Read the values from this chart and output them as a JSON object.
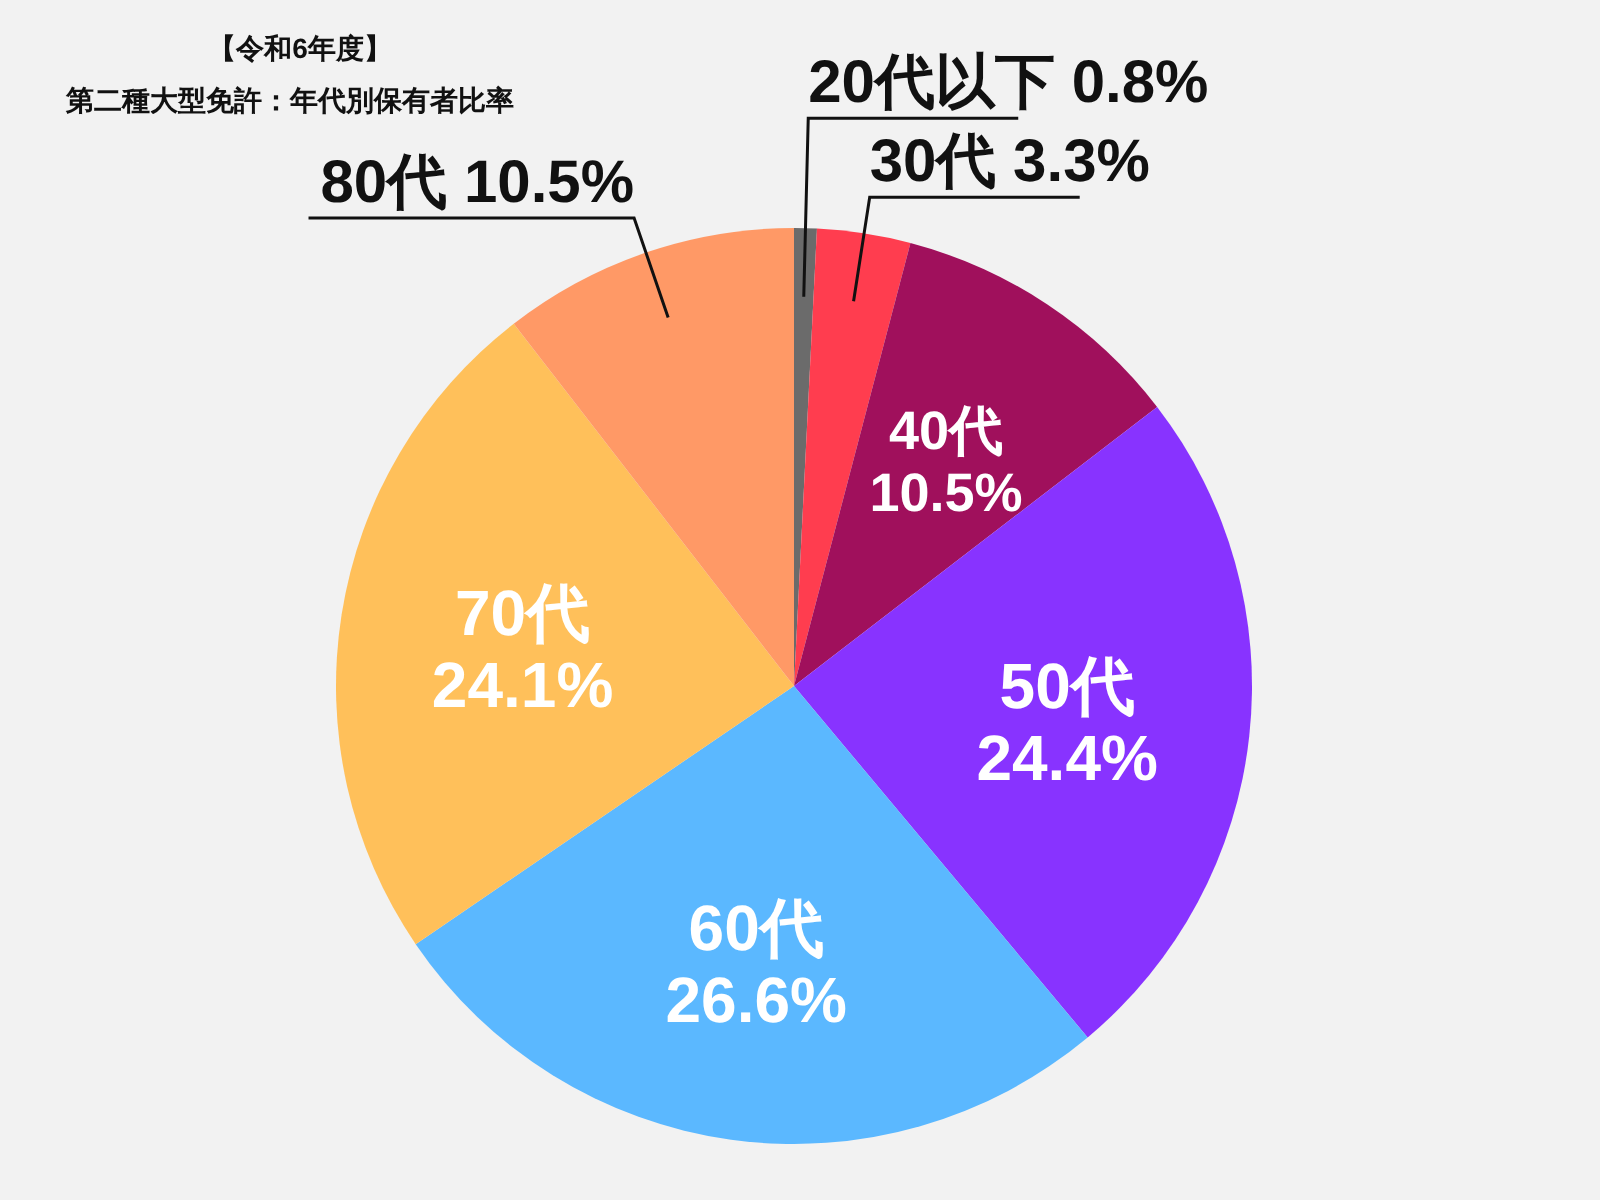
{
  "chart_data": {
    "type": "pie",
    "title": "【令和6年度】",
    "subtitle": "第二種大型免許：年代別保有者比率",
    "categories": [
      "20代以下",
      "30代",
      "40代",
      "50代",
      "60代",
      "70代",
      "80代"
    ],
    "values": [
      0.8,
      3.3,
      10.5,
      24.4,
      26.6,
      24.1,
      10.5
    ],
    "value_labels": [
      "0.8%",
      "3.3%",
      "10.5%",
      "24.4%",
      "26.6%",
      "24.1%",
      "10.5%"
    ],
    "colors": [
      "#6b6b6b",
      "#ff3d4f",
      "#a0105c",
      "#8833ff",
      "#5bb8ff",
      "#ffc05a",
      "#ff9966"
    ],
    "legend": false
  }
}
